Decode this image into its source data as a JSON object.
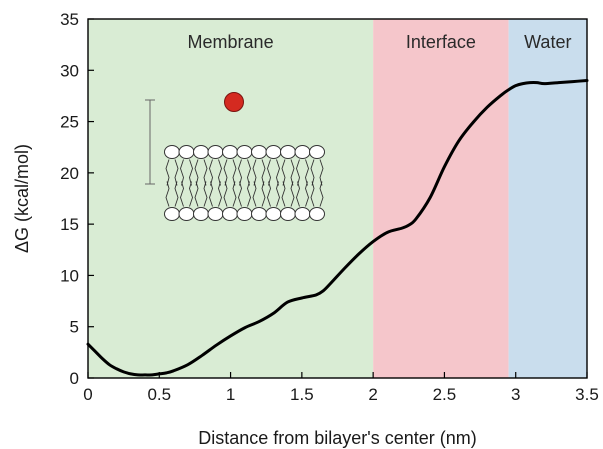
{
  "chart_data": {
    "type": "line",
    "xlabel": "Distance from bilayer's center (nm)",
    "ylabel": "ΔG (kcal/mol)",
    "xlim": [
      0,
      3.5
    ],
    "ylim": [
      0,
      35
    ],
    "xticks": [
      0,
      0.5,
      1,
      1.5,
      2,
      2.5,
      3,
      3.5
    ],
    "yticks": [
      0,
      5,
      10,
      15,
      20,
      25,
      30,
      35
    ],
    "xtick_labels": [
      "0",
      "0.5",
      "1",
      "1.5",
      "2",
      "2.5",
      "3",
      "3.5"
    ],
    "ytick_labels": [
      "0",
      "5",
      "10",
      "15",
      "20",
      "25",
      "30",
      "35"
    ],
    "grid": false,
    "regions": [
      {
        "label": "Membrane",
        "x_start": 0,
        "x_end": 2.0,
        "color": "#d9ecd4"
      },
      {
        "label": "Interface",
        "x_start": 2.0,
        "x_end": 2.95,
        "color": "#f5c6cb"
      },
      {
        "label": "Water",
        "x_start": 2.95,
        "x_end": 3.5,
        "color": "#c9dded"
      }
    ],
    "series": [
      {
        "color": "#000000",
        "x": [
          0,
          0.05,
          0.1,
          0.15,
          0.2,
          0.25,
          0.3,
          0.35,
          0.4,
          0.45,
          0.5,
          0.55,
          0.6,
          0.7,
          0.8,
          0.9,
          1.0,
          1.1,
          1.2,
          1.3,
          1.4,
          1.5,
          1.6,
          1.65,
          1.7,
          1.8,
          1.9,
          2.0,
          2.1,
          2.2,
          2.25,
          2.3,
          2.4,
          2.5,
          2.6,
          2.7,
          2.8,
          2.9,
          2.95,
          3.0,
          3.05,
          3.1,
          3.15,
          3.2,
          3.3,
          3.4,
          3.5
        ],
        "y": [
          3.3,
          2.6,
          1.9,
          1.3,
          0.9,
          0.6,
          0.4,
          0.3,
          0.3,
          0.3,
          0.4,
          0.5,
          0.7,
          1.3,
          2.2,
          3.2,
          4.1,
          4.9,
          5.5,
          6.3,
          7.4,
          7.8,
          8.1,
          8.5,
          9.2,
          10.7,
          12.1,
          13.3,
          14.2,
          14.6,
          14.9,
          15.5,
          17.6,
          20.6,
          23.1,
          24.9,
          26.4,
          27.6,
          28.1,
          28.5,
          28.7,
          28.8,
          28.8,
          28.7,
          28.8,
          28.9,
          29.0
        ]
      }
    ],
    "inset": {
      "particle_color": "#d42a20",
      "lipid_heads_per_leaflet": 11
    }
  }
}
